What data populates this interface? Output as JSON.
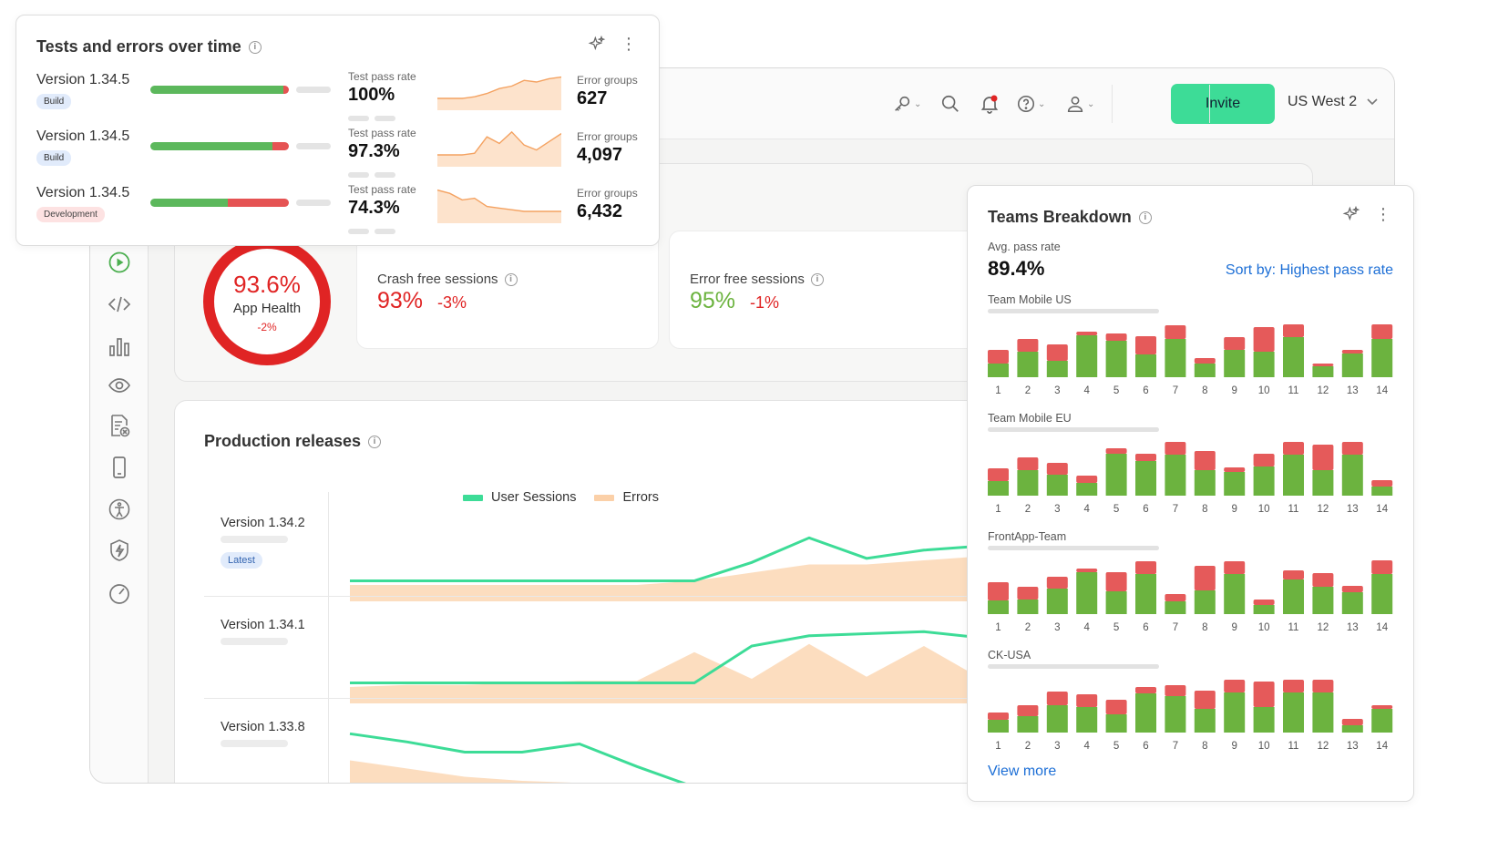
{
  "topbar": {
    "icons": [
      "key-icon",
      "search-icon",
      "bell-icon",
      "help-icon",
      "user-icon"
    ],
    "invite_label": "Invite",
    "region_label": "US West 2",
    "colors": {
      "invite_bg": "#3ddc97",
      "notification_dot": "#e02424"
    }
  },
  "sidebar": {
    "icons": [
      "play-icon",
      "code-icon",
      "bar-chart-icon",
      "eye-icon",
      "document-error-icon",
      "mobile-icon",
      "accessibility-icon",
      "shield-bolt-icon",
      "gauge-icon"
    ]
  },
  "health": {
    "value": "93.6%",
    "label": "App Health",
    "delta": "-2%"
  },
  "stats": [
    {
      "label": "Crash free sessions",
      "value": "93%",
      "delta": "-3%",
      "value_color": "#e02424"
    },
    {
      "label": "Error free sessions",
      "value": "95%",
      "delta": "-1%",
      "value_color": "#6cb33f"
    }
  ],
  "releases": {
    "title": "Production releases",
    "legend": [
      {
        "label": "User Sessions",
        "color": "#3ddc97"
      },
      {
        "label": "Errors",
        "color": "#fbd0a8"
      }
    ],
    "rows": [
      {
        "version": "Version 1.34.2",
        "badge": "Latest",
        "sessions": [
          1,
          1,
          1,
          1,
          1,
          1,
          1,
          1.9,
          3.1,
          2.1,
          2.5,
          2.7
        ],
        "errors": [
          0.8,
          0.8,
          0.8,
          0.8,
          0.8,
          0.8,
          1.0,
          1.4,
          1.8,
          1.8,
          2.0,
          2.2
        ]
      },
      {
        "version": "Version 1.34.1",
        "badge": "",
        "sessions": [
          1,
          1,
          1,
          1,
          1,
          1,
          1,
          2.8,
          3.3,
          3.4,
          3.5,
          3.2,
          2.9
        ],
        "errors": [
          0.8,
          0.9,
          0.9,
          1.0,
          1.1,
          1.1,
          2.5,
          1.2,
          2.9,
          1.3,
          2.8,
          1.2,
          1.2
        ]
      },
      {
        "version": "Version 1.33.8",
        "badge": "",
        "sessions": [
          3.5,
          3.1,
          2.6,
          2.6,
          3.0,
          1.9,
          0.9
        ],
        "errors": [
          2.2,
          1.8,
          1.4,
          1.2,
          1.1,
          1.0,
          1.0
        ]
      }
    ]
  },
  "tests_card": {
    "title": "Tests and errors over time",
    "pass_label": "Test pass rate",
    "error_label": "Error groups",
    "rows": [
      {
        "version": "Version 1.34.5",
        "badge": "Build",
        "badge_type": "build",
        "pass_rate": "100%",
        "pass_fraction": 0.96,
        "error_groups": "627",
        "trend": [
          1,
          1,
          1,
          1.2,
          1.6,
          2.2,
          2.5,
          3.2,
          3.0,
          3.4,
          3.6
        ]
      },
      {
        "version": "Version 1.34.5",
        "badge": "Build",
        "badge_type": "build",
        "pass_rate": "97.3%",
        "pass_fraction": 0.88,
        "error_groups": "4,097",
        "trend": [
          1,
          1,
          1,
          1.2,
          3.2,
          2.4,
          3.8,
          2.2,
          1.6,
          2.6,
          3.6
        ]
      },
      {
        "version": "Version 1.34.5",
        "badge": "Development",
        "badge_type": "dev",
        "pass_rate": "74.3%",
        "pass_fraction": 0.56,
        "error_groups": "6,432",
        "trend": [
          3.6,
          3.2,
          2.4,
          2.6,
          1.6,
          1.4,
          1.2,
          1.0,
          1.0,
          1.0,
          1.0
        ]
      }
    ]
  },
  "teams_card": {
    "title": "Teams Breakdown",
    "avg_label": "Avg. pass rate",
    "avg_value": "89.4%",
    "sort_label": "Sort by: Highest pass rate",
    "view_more": "View more",
    "colors": {
      "pass": "#6cb33f",
      "fail": "#e55a5a"
    },
    "teams": [
      {
        "name": "Team Mobile US",
        "pass": [
          15,
          28,
          18,
          46,
          40,
          25,
          42,
          15,
          30,
          28,
          44,
          12,
          26,
          42
        ],
        "fail": [
          15,
          14,
          18,
          4,
          8,
          20,
          15,
          6,
          14,
          27,
          14,
          3,
          4,
          16
        ]
      },
      {
        "name": "Team Mobile EU",
        "pass": [
          16,
          28,
          23,
          14,
          46,
          38,
          45,
          28,
          26,
          32,
          45,
          28,
          45,
          10
        ],
        "fail": [
          14,
          14,
          13,
          8,
          6,
          8,
          14,
          21,
          5,
          14,
          14,
          28,
          14,
          7
        ]
      },
      {
        "name": "FrontApp-Team",
        "pass": [
          15,
          16,
          28,
          46,
          25,
          44,
          14,
          26,
          44,
          10,
          38,
          30,
          24,
          44
        ],
        "fail": [
          20,
          14,
          13,
          4,
          21,
          14,
          8,
          27,
          14,
          6,
          10,
          15,
          7,
          15
        ]
      },
      {
        "name": "CK-USA",
        "pass": [
          14,
          18,
          30,
          28,
          20,
          43,
          40,
          26,
          44,
          28,
          44,
          44,
          8,
          26
        ],
        "fail": [
          8,
          12,
          15,
          14,
          16,
          7,
          12,
          20,
          14,
          28,
          14,
          14,
          7,
          4
        ]
      }
    ]
  }
}
